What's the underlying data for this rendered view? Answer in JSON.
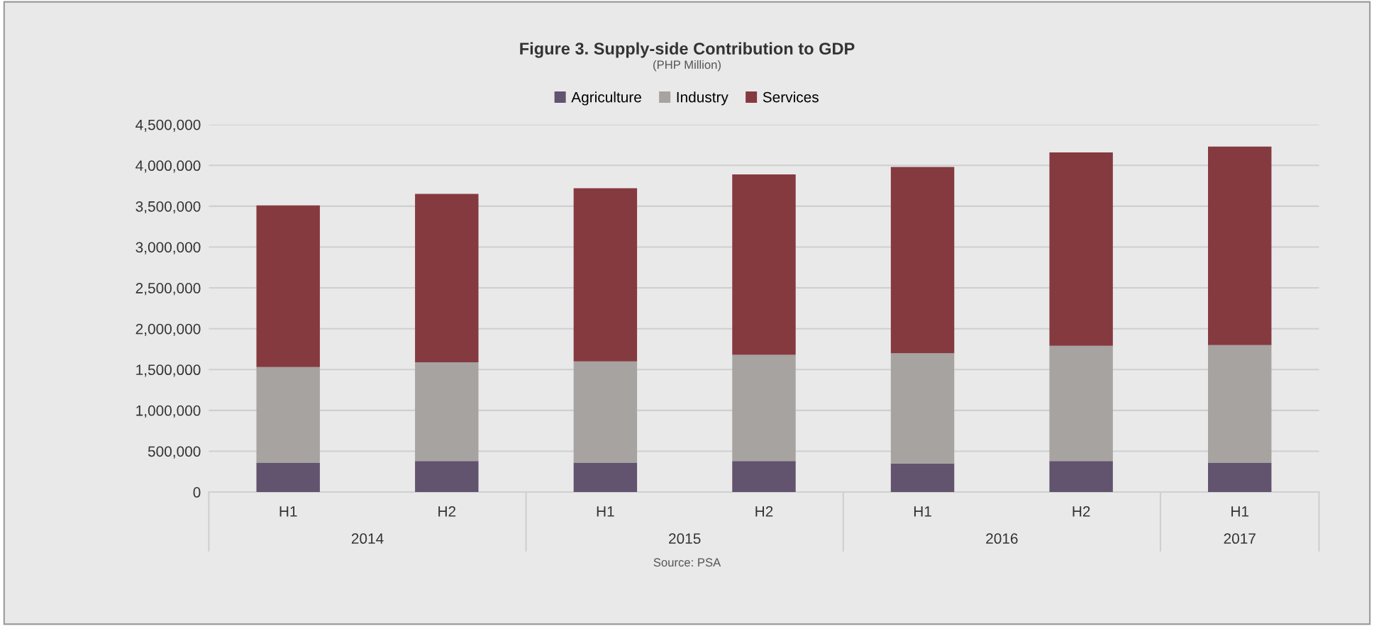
{
  "chart_data": {
    "type": "bar",
    "title": "Figure 3. Supply-side Contribution to GDP",
    "subtitle": "(PHP Million)",
    "categories": [
      "H1",
      "H2",
      "H1",
      "H2",
      "H1",
      "H2",
      "H1"
    ],
    "series": [
      {
        "name": "Agriculture",
        "color": "#62536e",
        "values": [
          360000,
          380000,
          360000,
          380000,
          350000,
          380000,
          360000
        ]
      },
      {
        "name": "Industry",
        "color": "#a6a3a1",
        "values": [
          1170000,
          1210000,
          1240000,
          1300000,
          1350000,
          1410000,
          1440000
        ]
      },
      {
        "name": "Services",
        "color": "#853a40",
        "values": [
          1980000,
          2060000,
          2120000,
          2210000,
          2280000,
          2370000,
          2430000
        ]
      }
    ],
    "stacked": true,
    "ylim": [
      0,
      4500000
    ],
    "yticks": [
      {
        "value": 0,
        "label": "0"
      },
      {
        "value": 500000,
        "label": "500,000"
      },
      {
        "value": 1000000,
        "label": "1,000,000"
      },
      {
        "value": 1500000,
        "label": "1,500,000"
      },
      {
        "value": 2000000,
        "label": "2,000,000"
      },
      {
        "value": 2500000,
        "label": "2,500,000"
      },
      {
        "value": 3000000,
        "label": "3,000,000"
      },
      {
        "value": 3500000,
        "label": "3,500,000"
      },
      {
        "value": 4000000,
        "label": "4,000,000"
      },
      {
        "value": 4500000,
        "label": "4,500,000"
      }
    ],
    "grid": "y",
    "legend": "top",
    "annotations": [
      "2014",
      "2015",
      "2016",
      "2017",
      "Source: PSA"
    ]
  }
}
